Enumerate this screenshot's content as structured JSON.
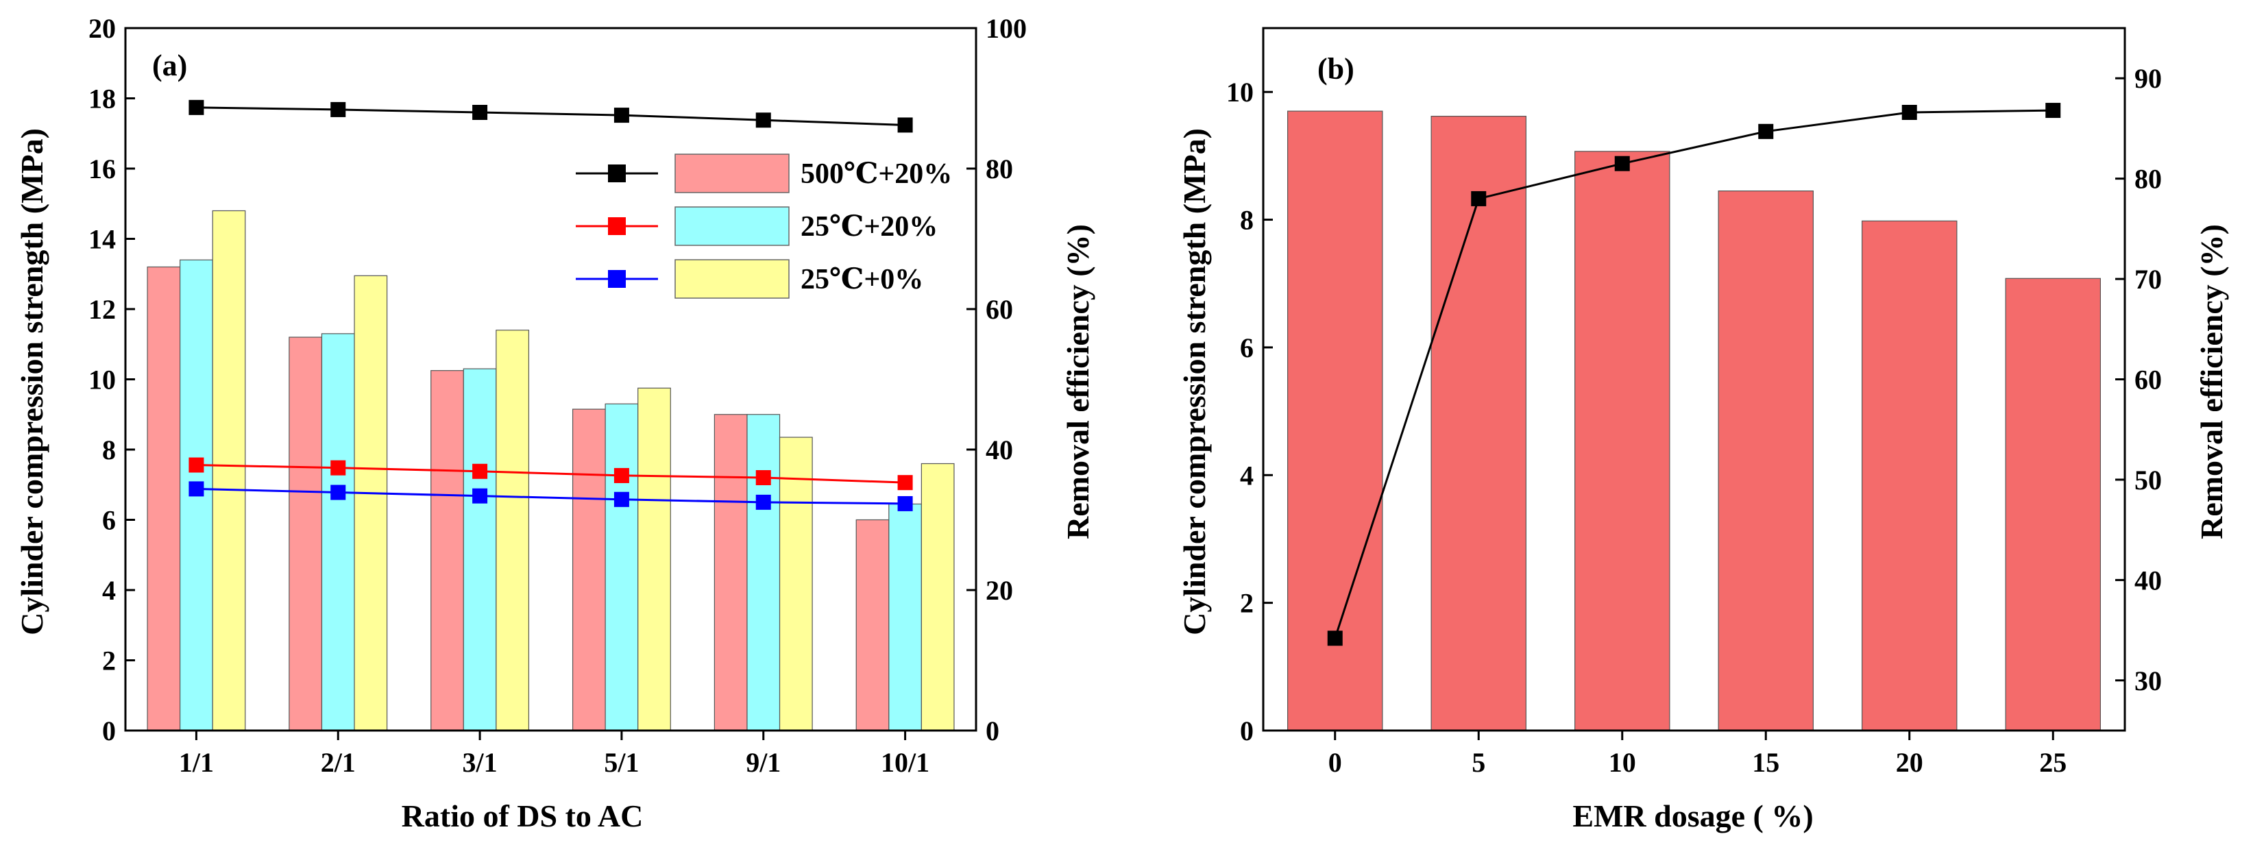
{
  "chart_data": [
    {
      "type": "bar",
      "panel_label": "(a)",
      "categories": [
        "1/1",
        "2/1",
        "3/1",
        "5/1",
        "9/1",
        "10/1"
      ],
      "xlabel": "Ratio of DS to AC",
      "ylabel": "Cylinder compression strength (MPa)",
      "ylim": [
        0,
        20
      ],
      "yticks": [
        "0",
        "2",
        "4",
        "6",
        "8",
        "10",
        "12",
        "14",
        "16",
        "18",
        "20"
      ],
      "y2label": "Removal efficiency (%)",
      "y2lim": [
        0,
        100
      ],
      "y2ticks": [
        "0",
        "20",
        "40",
        "60",
        "80",
        "100"
      ],
      "legend_position": "top-right",
      "series": [
        {
          "name": "500℃+20%",
          "kind": "bar",
          "axis": "left",
          "color": "#FF9999",
          "values": [
            13.2,
            11.2,
            10.25,
            9.15,
            9.0,
            6.0
          ]
        },
        {
          "name": "25℃+20%",
          "kind": "bar",
          "axis": "left",
          "color": "#99FFFF",
          "values": [
            13.4,
            11.3,
            10.3,
            9.3,
            9.0,
            6.45
          ]
        },
        {
          "name": "25℃+0%",
          "kind": "bar",
          "axis": "left",
          "color": "#FFFF99",
          "values": [
            14.8,
            12.95,
            11.4,
            9.75,
            8.35,
            7.6
          ]
        },
        {
          "name": "500℃+20%",
          "kind": "line",
          "axis": "right",
          "color": "#000000",
          "values": [
            88.7,
            88.4,
            88.0,
            87.6,
            86.9,
            86.2
          ]
        },
        {
          "name": "25℃+20%",
          "kind": "line",
          "axis": "right",
          "color": "#FF0000",
          "values": [
            37.8,
            37.4,
            36.9,
            36.3,
            36.0,
            35.3
          ]
        },
        {
          "name": "25℃+0%",
          "kind": "line",
          "axis": "right",
          "color": "#0000FF",
          "values": [
            34.4,
            33.9,
            33.4,
            32.9,
            32.5,
            32.3
          ]
        }
      ]
    },
    {
      "type": "bar",
      "panel_label": "(b)",
      "categories": [
        "0",
        "5",
        "10",
        "15",
        "20",
        "25"
      ],
      "xlabel": "EMR dosage ( %)",
      "ylabel": "Cylinder compression strength (MPa)",
      "ylim": [
        0,
        11
      ],
      "yticks": [
        "0",
        "2",
        "4",
        "6",
        "8",
        "10"
      ],
      "y2label": "Removal efficiency (%)",
      "y2lim": [
        25,
        95
      ],
      "y2ticks": [
        "30",
        "40",
        "50",
        "60",
        "70",
        "80",
        "90"
      ],
      "series": [
        {
          "name": "Cylinder compression strength",
          "kind": "bar",
          "axis": "left",
          "color": "#F46B6B",
          "values": [
            9.7,
            9.62,
            9.07,
            8.45,
            7.98,
            7.08
          ]
        },
        {
          "name": "Removal efficiency",
          "kind": "line",
          "axis": "right",
          "color": "#000000",
          "values": [
            34.2,
            78.0,
            81.5,
            84.7,
            86.6,
            86.8
          ]
        }
      ]
    }
  ]
}
